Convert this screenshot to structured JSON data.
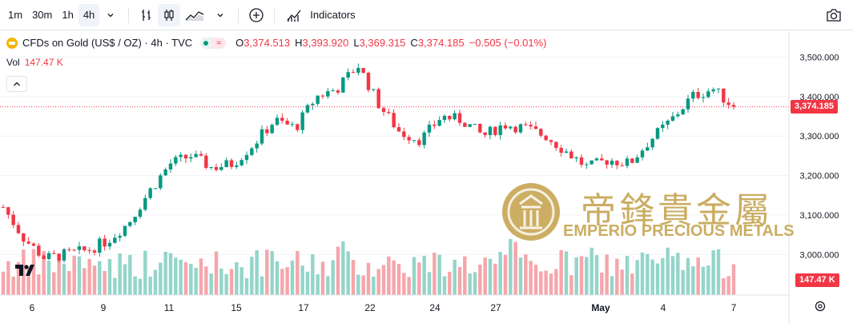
{
  "toolbar": {
    "timeframes": [
      "1m",
      "30m",
      "1h",
      "4h"
    ],
    "active_timeframe": "4h",
    "indicators_label": "Indicators"
  },
  "legend": {
    "symbol": "CFDs on Gold (US$ / OZ) · 4h · TVC",
    "open_label": "O",
    "open": "3,374.513",
    "high_label": "H",
    "high": "3,393.920",
    "low_label": "L",
    "low": "3,369.315",
    "close_label": "C",
    "close": "3,374.185",
    "change": "−0.505 (−0.01%)"
  },
  "volume": {
    "label": "Vol",
    "value": "147.47 K"
  },
  "price_badge": "3,374.185",
  "volume_badge": "147.47 K",
  "watermark": {
    "chinese": "帝鋒貴金屬",
    "english": "EMPERIO PRECIOUS METALS"
  },
  "colors": {
    "up": "#089981",
    "down": "#f23645",
    "vol_up": "#94d5c9",
    "vol_down": "#f5a6ab",
    "gold": "#c6a552"
  },
  "chart_data": {
    "type": "candlestick",
    "y_axis_labels": [
      "3,500.000",
      "3,400.000",
      "3,300.000",
      "3,200.000",
      "3,100.000",
      "3,000.000"
    ],
    "y_ticks": [
      3500,
      3400,
      3300,
      3200,
      3100,
      3000
    ],
    "ylim": [
      2950,
      3550
    ],
    "x_labels": [
      "6",
      "9",
      "11",
      "15",
      "17",
      "22",
      "24",
      "27",
      "May",
      "4",
      "7"
    ],
    "last_close": 3374.185,
    "close_path": [
      3120,
      3040,
      2990,
      3000,
      3010,
      3035,
      3080,
      3160,
      3230,
      3250,
      3220,
      3230,
      3280,
      3340,
      3320,
      3400,
      3420,
      3480,
      3380,
      3310,
      3290,
      3350,
      3340,
      3300,
      3330,
      3320,
      3300,
      3260,
      3220,
      3240,
      3230,
      3290,
      3340,
      3400,
      3420,
      3374
    ]
  }
}
